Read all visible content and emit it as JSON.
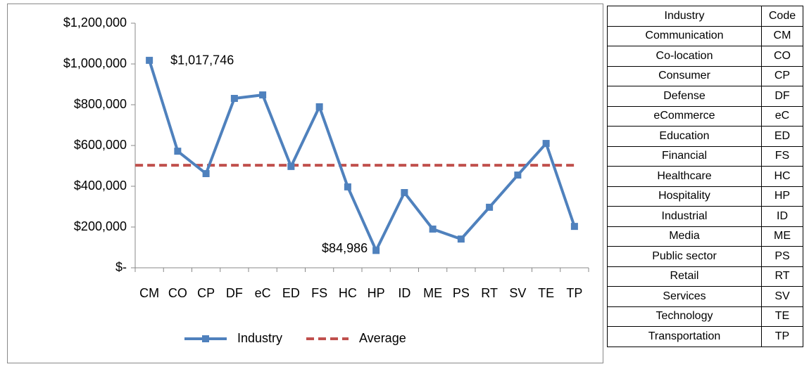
{
  "chart_data": {
    "type": "line",
    "categories": [
      "CM",
      "CO",
      "CP",
      "DF",
      "eC",
      "ED",
      "FS",
      "HC",
      "HP",
      "ID",
      "ME",
      "PS",
      "RT",
      "SV",
      "TE",
      "TP"
    ],
    "series": [
      {
        "name": "Industry",
        "color": "#4f81bd",
        "values": [
          1017746,
          572000,
          462000,
          831000,
          848000,
          497000,
          790000,
          397000,
          84986,
          369000,
          190000,
          141000,
          297000,
          455000,
          610000,
          203000
        ],
        "value_labels": [
          "$1,017,746",
          null,
          null,
          null,
          null,
          null,
          null,
          null,
          "$84,986",
          null,
          null,
          null,
          null,
          null,
          null,
          null
        ]
      },
      {
        "name": "Average",
        "color": "#c0504d",
        "dashed": true,
        "values": [
          503000,
          503000,
          503000,
          503000,
          503000,
          503000,
          503000,
          503000,
          503000,
          503000,
          503000,
          503000,
          503000,
          503000,
          503000,
          503000
        ]
      }
    ],
    "ylim": [
      0,
      1200000
    ],
    "yticks": [
      {
        "value": 0,
        "label": "$-"
      },
      {
        "value": 200000,
        "label": "$200,000"
      },
      {
        "value": 400000,
        "label": "$400,000"
      },
      {
        "value": 600000,
        "label": "$600,000"
      },
      {
        "value": 800000,
        "label": "$800,000"
      },
      {
        "value": 1000000,
        "label": "$1,000,000"
      },
      {
        "value": 1200000,
        "label": "$1,200,000"
      }
    ],
    "legend": "bottom",
    "grid": false
  },
  "table": {
    "header": [
      "Industry",
      "Code"
    ],
    "rows": [
      [
        "Communication",
        "CM"
      ],
      [
        "Co-location",
        "CO"
      ],
      [
        "Consumer",
        "CP"
      ],
      [
        "Defense",
        "DF"
      ],
      [
        "eCommerce",
        "eC"
      ],
      [
        "Education",
        "ED"
      ],
      [
        "Financial",
        "FS"
      ],
      [
        "Healthcare",
        "HC"
      ],
      [
        "Hospitality",
        "HP"
      ],
      [
        "Industrial",
        "ID"
      ],
      [
        "Media",
        "ME"
      ],
      [
        "Public sector",
        "PS"
      ],
      [
        "Retail",
        "RT"
      ],
      [
        "Services",
        "SV"
      ],
      [
        "Technology",
        "TE"
      ],
      [
        "Transportation",
        "TP"
      ]
    ]
  }
}
